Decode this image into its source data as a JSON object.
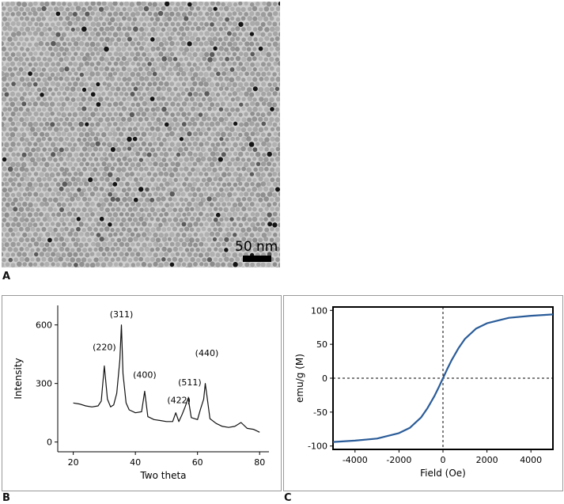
{
  "panel_a": {
    "letter": "A",
    "scale_label": "50 nm"
  },
  "panel_b": {
    "letter": "B"
  },
  "panel_c": {
    "letter": "C"
  },
  "chart_data": [
    {
      "type": "line",
      "panel": "B",
      "xlabel": "Two theta",
      "ylabel": "Intensity",
      "xlim": [
        15,
        83
      ],
      "ylim": [
        -50,
        700
      ],
      "xticks": [
        20,
        40,
        60,
        80
      ],
      "yticks": [
        0,
        300,
        600
      ],
      "color": "#111111",
      "series": [
        {
          "x": [
            20,
            22,
            24,
            26,
            28,
            29,
            30,
            31,
            32,
            33,
            34,
            35,
            35.5,
            36,
            37,
            38,
            40,
            42,
            43,
            44,
            46,
            48,
            50,
            52,
            53,
            54,
            55,
            56,
            57,
            58,
            60,
            61,
            62,
            62.5,
            63,
            64,
            66,
            68,
            70,
            72,
            74,
            76,
            78,
            80
          ],
          "values": [
            200,
            195,
            185,
            180,
            185,
            210,
            390,
            220,
            180,
            190,
            250,
            420,
            600,
            350,
            200,
            165,
            150,
            155,
            260,
            130,
            115,
            110,
            105,
            105,
            150,
            105,
            140,
            180,
            225,
            125,
            115,
            170,
            220,
            300,
            240,
            120,
            95,
            80,
            75,
            80,
            100,
            70,
            65,
            50
          ]
        }
      ],
      "annotations": [
        {
          "text": "(220)",
          "x": 30,
          "y": 470
        },
        {
          "text": "(311)",
          "x": 35.5,
          "y": 640
        },
        {
          "text": "(400)",
          "x": 43,
          "y": 330
        },
        {
          "text": "(422)",
          "x": 54,
          "y": 200
        },
        {
          "text": "(511)",
          "x": 57.5,
          "y": 290
        },
        {
          "text": "(440)",
          "x": 63,
          "y": 440
        }
      ]
    },
    {
      "type": "line",
      "panel": "C",
      "xlabel": "Field (Oe)",
      "ylabel": "emu/g (M)",
      "xlim": [
        -5000,
        5000
      ],
      "ylim": [
        -105,
        105
      ],
      "xticks": [
        -4000,
        -2000,
        0,
        2000,
        4000
      ],
      "yticks": [
        -100,
        -50,
        0,
        50,
        100
      ],
      "color": "#2a5c99",
      "series": [
        {
          "x": [
            -5000,
            -4000,
            -3000,
            -2000,
            -1500,
            -1000,
            -700,
            -400,
            -200,
            0,
            200,
            400,
            700,
            1000,
            1500,
            2000,
            3000,
            4000,
            5000
          ],
          "values": [
            -94,
            -92,
            -89,
            -81,
            -73,
            -58,
            -44,
            -27,
            -14,
            0,
            14,
            27,
            44,
            58,
            73,
            81,
            89,
            92,
            94
          ]
        }
      ],
      "zero_lines": true
    }
  ]
}
